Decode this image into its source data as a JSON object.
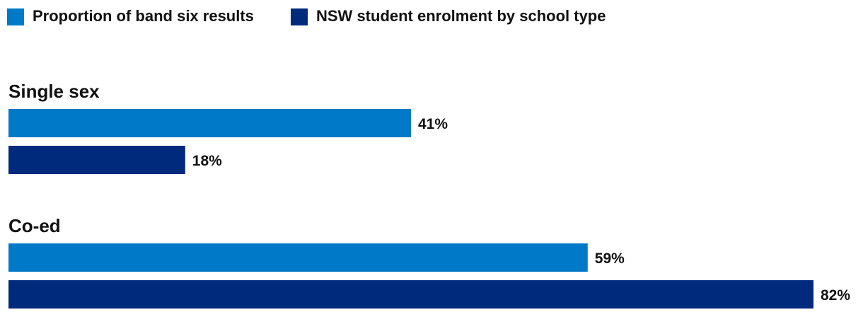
{
  "chart_data": {
    "type": "bar",
    "orientation": "horizontal",
    "categories": [
      "Single sex",
      "Co-ed"
    ],
    "series": [
      {
        "name": "Proportion of band six results",
        "values": [
          41,
          59
        ],
        "color": "#0079c8"
      },
      {
        "name": "NSW student enrolment by school type",
        "values": [
          18,
          82
        ],
        "color": "#002a7c"
      }
    ],
    "value_labels": [
      [
        "41%",
        "59%"
      ],
      [
        "18%",
        "82%"
      ]
    ],
    "xlim": [
      0,
      83
    ],
    "grid": false,
    "legend_position": "top-left"
  }
}
